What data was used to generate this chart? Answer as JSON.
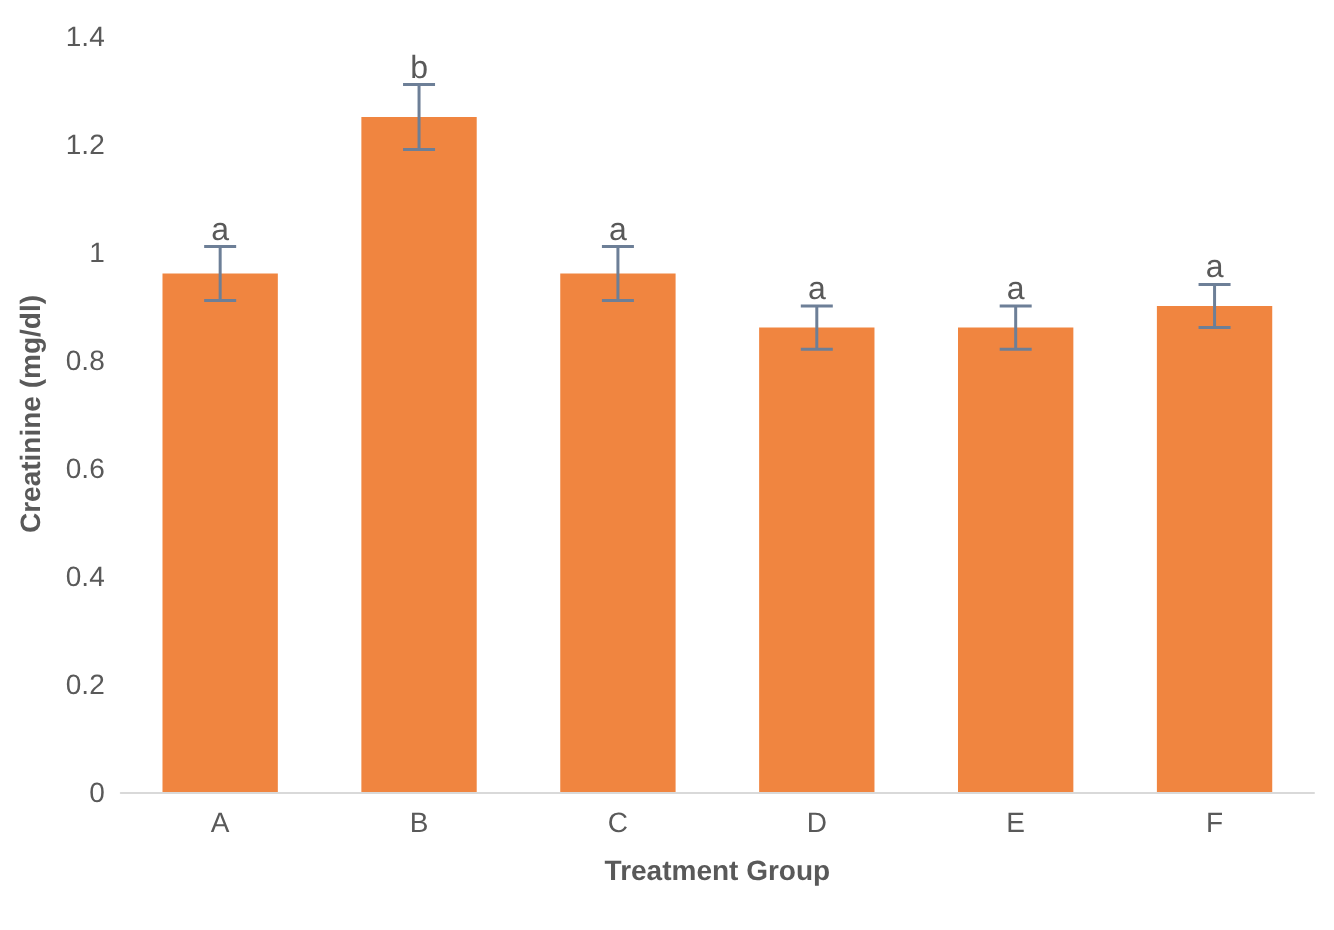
{
  "chart_data": {
    "type": "bar",
    "xlabel": "Treatment Group",
    "ylabel": "Creatinine (mg/dl)",
    "categories": [
      "A",
      "B",
      "C",
      "D",
      "E",
      "F"
    ],
    "values": [
      0.96,
      1.25,
      0.96,
      0.86,
      0.86,
      0.9
    ],
    "errors": [
      0.05,
      0.06,
      0.05,
      0.04,
      0.04,
      0.04
    ],
    "color": "#f08540",
    "ylim": [
      0,
      1.4
    ],
    "yticks": [
      0,
      0.2,
      0.4,
      0.6,
      0.8,
      1,
      1.2,
      1.4
    ],
    "grid": false,
    "annotations": [
      {
        "text": "a",
        "x": "A",
        "y": 1.01
      },
      {
        "text": "b",
        "x": "B",
        "y": 1.31
      },
      {
        "text": "a",
        "x": "C",
        "y": 1.01
      },
      {
        "text": "a",
        "x": "D",
        "y": 0.9
      },
      {
        "text": "a",
        "x": "E",
        "y": 0.9
      },
      {
        "text": "a",
        "x": "F",
        "y": 0.94
      }
    ]
  }
}
